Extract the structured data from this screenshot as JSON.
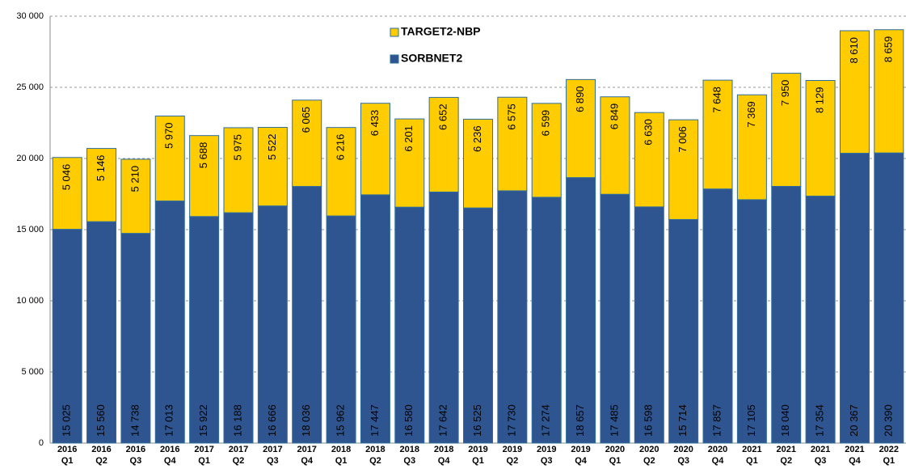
{
  "chart_data": {
    "type": "stacked-bar",
    "categories": [
      [
        "2016",
        "Q1"
      ],
      [
        "2016",
        "Q2"
      ],
      [
        "2016",
        "Q3"
      ],
      [
        "2016",
        "Q4"
      ],
      [
        "2017",
        "Q1"
      ],
      [
        "2017",
        "Q2"
      ],
      [
        "2017",
        "Q3"
      ],
      [
        "2017",
        "Q4"
      ],
      [
        "2018",
        "Q1"
      ],
      [
        "2018",
        "Q2"
      ],
      [
        "2018",
        "Q3"
      ],
      [
        "2018",
        "Q4"
      ],
      [
        "2019",
        "Q1"
      ],
      [
        "2019",
        "Q2"
      ],
      [
        "2019",
        "Q3"
      ],
      [
        "2019",
        "Q4"
      ],
      [
        "2020",
        "Q1"
      ],
      [
        "2020",
        "Q2"
      ],
      [
        "2020",
        "Q3"
      ],
      [
        "2020",
        "Q4"
      ],
      [
        "2021",
        "Q1"
      ],
      [
        "2021",
        "Q2"
      ],
      [
        "2021",
        "Q3"
      ],
      [
        "2021",
        "Q4"
      ],
      [
        "2022",
        "Q1"
      ]
    ],
    "series": [
      {
        "name": "SORBNET2",
        "color": "#2e5590",
        "label_color": "#ffffff",
        "values": [
          15025,
          15560,
          14738,
          17013,
          15922,
          16188,
          16666,
          18036,
          15962,
          17447,
          16580,
          17642,
          16525,
          17730,
          17274,
          18657,
          17485,
          16598,
          15714,
          17857,
          17105,
          18040,
          17354,
          20367,
          20390
        ],
        "value_labels": [
          "15 025",
          "15 560",
          "14 738",
          "17 013",
          "15 922",
          "16 188",
          "16 666",
          "18 036",
          "15 962",
          "17 447",
          "16 580",
          "17 642",
          "16 525",
          "17 730",
          "17 274",
          "18 657",
          "17 485",
          "16 598",
          "15 714",
          "17 857",
          "17 105",
          "18 040",
          "17 354",
          "20 367",
          "20 390"
        ]
      },
      {
        "name": "TARGET2-NBP",
        "color": "#ffcc00",
        "label_color": "#333333",
        "values": [
          5046,
          5146,
          5210,
          5970,
          5688,
          5975,
          5522,
          6065,
          6216,
          6433,
          6201,
          6652,
          6236,
          6575,
          6599,
          6890,
          6849,
          6630,
          7006,
          7648,
          7369,
          7950,
          8129,
          8610,
          8659
        ],
        "value_labels": [
          "5 046",
          "5 146",
          "5 210",
          "5 970",
          "5 688",
          "5 975",
          "5 522",
          "6 065",
          "6 216",
          "6 433",
          "6 201",
          "6 652",
          "6 236",
          "6 575",
          "6 599",
          "6 890",
          "6 849",
          "6 630",
          "7 006",
          "7 648",
          "7 369",
          "7 950",
          "8 129",
          "8 610",
          "8 659"
        ]
      }
    ],
    "ylim": [
      0,
      30000
    ],
    "yticks": [
      0,
      {
        "value": 5000,
        "label": "5 000"
      },
      {
        "value": 10000,
        "label": "10 000"
      },
      {
        "value": 15000,
        "label": "15 000"
      },
      {
        "value": 20000,
        "label": "20 000"
      },
      {
        "value": 25000,
        "label": "25 000"
      },
      {
        "value": 30000,
        "label": "30 000"
      }
    ],
    "grid": true
  }
}
